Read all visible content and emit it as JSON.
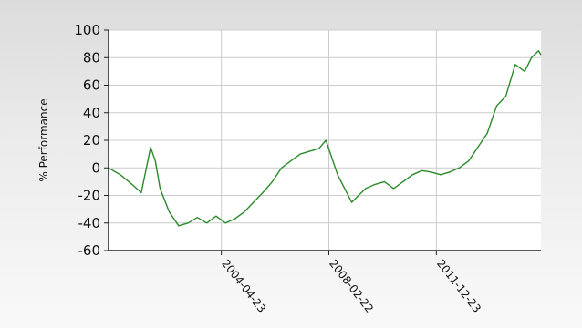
{
  "chart_data": {
    "type": "line",
    "title": "",
    "xlabel": "",
    "ylabel": "% Performance",
    "ylim": [
      -60,
      100
    ],
    "xlim": [
      "2000-04-15",
      "2015-09-15"
    ],
    "y_ticks": [
      100,
      80,
      60,
      40,
      20,
      0,
      -20,
      -40,
      -60
    ],
    "x_ticks": [
      "2004-04-23",
      "2008-02-22",
      "2011-12-23"
    ],
    "grid": true,
    "legend": "none",
    "colors": {
      "line": "#2a8a2a",
      "grid": "#cccccc",
      "axis": "#222222",
      "plot_bg": "#ffffff"
    },
    "series": [
      {
        "x": [
          "2000-04-15",
          "2000-09-15",
          "2001-02-15",
          "2001-06-15",
          "2001-10-15",
          "2001-12-15",
          "2002-02-15",
          "2002-06-15",
          "2002-10-15",
          "2003-02-15",
          "2003-06-15",
          "2003-10-15",
          "2004-02-15",
          "2004-06-15",
          "2004-10-15",
          "2005-02-15",
          "2005-06-15",
          "2005-10-15",
          "2006-02-15",
          "2006-06-15",
          "2006-10-15",
          "2007-02-15",
          "2007-06-15",
          "2007-10-15",
          "2008-01-15",
          "2008-03-15",
          "2008-06-15",
          "2008-09-15",
          "2008-12-15",
          "2009-03-15",
          "2009-06-15",
          "2009-10-15",
          "2010-02-15",
          "2010-06-15",
          "2010-10-15",
          "2011-02-15",
          "2011-06-15",
          "2011-10-15",
          "2012-02-15",
          "2012-06-15",
          "2012-10-15",
          "2013-02-15",
          "2013-06-15",
          "2013-10-15",
          "2014-02-15",
          "2014-06-15",
          "2014-10-15",
          "2015-02-15",
          "2015-05-15",
          "2015-08-15",
          "2015-09-15"
        ],
        "values": [
          0,
          -5,
          -12,
          -18,
          15,
          5,
          -15,
          -32,
          -42,
          -40,
          -36,
          -40,
          -35,
          -40,
          -37,
          -32,
          -25,
          -18,
          -10,
          0,
          5,
          10,
          12,
          14,
          20,
          10,
          -5,
          -15,
          -25,
          -20,
          -15,
          -12,
          -10,
          -15,
          -10,
          -5,
          -2,
          -3,
          -5,
          -3,
          0,
          5,
          15,
          25,
          45,
          52,
          75,
          70,
          80,
          85,
          82
        ]
      }
    ]
  }
}
